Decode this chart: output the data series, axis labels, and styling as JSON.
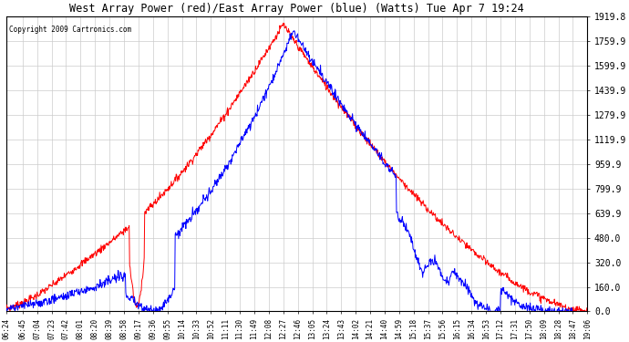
{
  "title": "West Array Power (red)/East Array Power (blue) (Watts) Tue Apr 7 19:24",
  "copyright": "Copyright 2009 Cartronics.com",
  "yticks": [
    0.0,
    160.0,
    320.0,
    480.0,
    639.9,
    799.9,
    959.9,
    1119.9,
    1279.9,
    1439.9,
    1599.9,
    1759.9,
    1919.8
  ],
  "ylim": [
    0.0,
    1919.8
  ],
  "red_color": "#ff0000",
  "blue_color": "#0000ff",
  "bg_color": "#ffffff",
  "grid_color": "#cccccc",
  "title_color": "#000000",
  "copyright_color": "#000000",
  "xtick_labels": [
    "06:24",
    "06:45",
    "07:04",
    "07:23",
    "07:42",
    "08:01",
    "08:20",
    "08:39",
    "08:58",
    "09:17",
    "09:36",
    "09:55",
    "10:14",
    "10:33",
    "10:52",
    "11:11",
    "11:30",
    "11:49",
    "12:08",
    "12:27",
    "12:46",
    "13:05",
    "13:24",
    "13:43",
    "14:02",
    "14:21",
    "14:40",
    "14:59",
    "15:18",
    "15:37",
    "15:56",
    "16:15",
    "16:34",
    "16:53",
    "17:12",
    "17:31",
    "17:50",
    "18:09",
    "18:28",
    "18:47",
    "19:06"
  ]
}
